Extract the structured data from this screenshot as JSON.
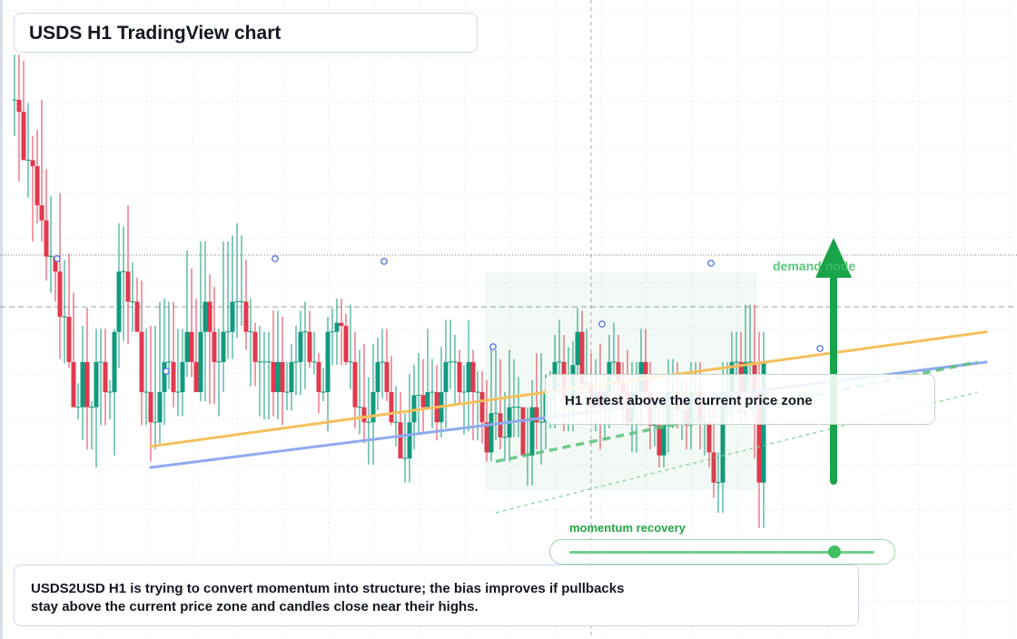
{
  "title": "USDS H1 TradingView chart",
  "annotations": {
    "retest": "H1 retest above the current price zone",
    "demand": "demand node",
    "momentum_label": "momentum recovery",
    "momentum_level": 0.87
  },
  "summary": "USDS2USD H1 is trying to convert momentum into structure; the bias improves if pullbacks stay above the current price zone and candles close near their highs.",
  "colors": {
    "up": "#129a7e",
    "down": "#e2394f",
    "trend_orange": "#f5bf5c",
    "trend_blue": "#8faaf0",
    "green_accent": "#19a34a"
  },
  "chart_data": {
    "type": "candlestick",
    "timeframe": "H1",
    "grid": true,
    "candles": [
      [
        100.0,
        100.0,
        97.6,
        103.0
      ],
      [
        100.0,
        99.2,
        94.6,
        103.0
      ],
      [
        99.2,
        96.0,
        96.0,
        102.6
      ],
      [
        96.0,
        96.0,
        93.5,
        99.8
      ],
      [
        96.0,
        95.6,
        90.6,
        97.6
      ],
      [
        95.6,
        93.0,
        91.8,
        98.0
      ],
      [
        93.0,
        92.0,
        90.6,
        100.0
      ],
      [
        92.0,
        89.6,
        88.0,
        95.4
      ],
      [
        89.6,
        89.6,
        87.2,
        93.6
      ],
      [
        89.6,
        88.6,
        86.6,
        89.6
      ],
      [
        88.6,
        85.6,
        82.8,
        93.8
      ],
      [
        85.6,
        85.6,
        82.5,
        89.4
      ],
      [
        85.6,
        82.6,
        82.2,
        89.8
      ],
      [
        82.6,
        79.6,
        79.6,
        87.2
      ],
      [
        79.6,
        79.6,
        78.8,
        81.2
      ],
      [
        79.6,
        82.6,
        77.4,
        85.0
      ],
      [
        82.6,
        79.6,
        76.8,
        86.2
      ],
      [
        79.6,
        79.6,
        76.8,
        80.0
      ],
      [
        79.6,
        82.6,
        75.6,
        84.8
      ],
      [
        82.6,
        82.6,
        78.4,
        84.8
      ],
      [
        82.6,
        80.6,
        78.4,
        84.8
      ],
      [
        80.6,
        80.6,
        78.8,
        81.4
      ],
      [
        80.6,
        84.6,
        76.4,
        84.8
      ],
      [
        84.6,
        88.6,
        82.2,
        91.8
      ],
      [
        88.6,
        88.6,
        84.0,
        91.6
      ],
      [
        88.6,
        86.6,
        83.8,
        93.0
      ],
      [
        86.6,
        86.6,
        84.6,
        89.2
      ],
      [
        86.6,
        84.6,
        84.6,
        88.2
      ],
      [
        84.6,
        80.6,
        78.4,
        88.0
      ],
      [
        80.6,
        80.6,
        78.4,
        84.8
      ],
      [
        80.6,
        78.6,
        76.0,
        85.0
      ],
      [
        78.6,
        78.6,
        76.8,
        85.0
      ],
      [
        78.6,
        80.6,
        77.2,
        86.6
      ],
      [
        80.6,
        82.6,
        78.4,
        86.8
      ],
      [
        82.6,
        82.6,
        80.8,
        86.6
      ],
      [
        82.6,
        80.6,
        79.6,
        86.6
      ],
      [
        80.6,
        80.6,
        79.0,
        84.8
      ],
      [
        80.6,
        82.6,
        79.0,
        84.8
      ],
      [
        82.6,
        84.6,
        81.6,
        90.0
      ],
      [
        84.6,
        82.6,
        81.6,
        88.8
      ],
      [
        82.6,
        80.6,
        80.6,
        86.8
      ],
      [
        80.6,
        84.6,
        80.0,
        90.6
      ],
      [
        84.6,
        86.6,
        80.0,
        90.6
      ],
      [
        86.6,
        84.6,
        79.8,
        88.4
      ],
      [
        84.6,
        82.6,
        79.8,
        87.6
      ],
      [
        82.6,
        82.6,
        79.0,
        84.8
      ],
      [
        82.6,
        84.6,
        80.6,
        90.6
      ],
      [
        84.6,
        84.6,
        82.8,
        90.6
      ],
      [
        84.6,
        86.6,
        82.8,
        91.0
      ],
      [
        86.6,
        86.6,
        84.2,
        91.8
      ],
      [
        86.6,
        86.6,
        85.0,
        91.0
      ],
      [
        86.6,
        84.6,
        83.4,
        89.4
      ],
      [
        84.6,
        84.6,
        81.0,
        86.8
      ],
      [
        84.6,
        82.6,
        81.0,
        85.2
      ],
      [
        82.6,
        82.6,
        79.0,
        85.0
      ],
      [
        82.6,
        82.6,
        78.8,
        84.6
      ],
      [
        82.6,
        82.6,
        78.8,
        84.6
      ],
      [
        82.6,
        80.6,
        79.0,
        86.0
      ],
      [
        80.6,
        82.6,
        78.8,
        86.0
      ],
      [
        82.6,
        80.6,
        78.4,
        85.6
      ],
      [
        80.6,
        80.6,
        79.4,
        82.6
      ],
      [
        80.6,
        82.6,
        79.4,
        83.8
      ],
      [
        82.6,
        82.6,
        80.4,
        85.0
      ],
      [
        82.6,
        84.6,
        80.4,
        86.0
      ],
      [
        84.6,
        84.6,
        80.8,
        86.6
      ],
      [
        84.6,
        82.6,
        82.2,
        86.0
      ],
      [
        82.6,
        82.6,
        81.8,
        84.6
      ],
      [
        82.6,
        80.6,
        79.2,
        83.2
      ],
      [
        80.6,
        80.6,
        80.0,
        82.2
      ],
      [
        80.6,
        84.6,
        78.0,
        85.6
      ],
      [
        84.6,
        84.6,
        82.4,
        86.2
      ],
      [
        84.6,
        85.2,
        82.4,
        86.8
      ],
      [
        85.2,
        85.0,
        82.4,
        86.8
      ],
      [
        85.0,
        82.6,
        82.4,
        85.8
      ],
      [
        82.6,
        82.6,
        80.8,
        86.4
      ],
      [
        82.6,
        79.6,
        78.2,
        84.6
      ],
      [
        79.6,
        79.6,
        77.8,
        83.4
      ],
      [
        79.6,
        78.6,
        77.2,
        83.8
      ],
      [
        78.6,
        78.6,
        75.8,
        81.6
      ],
      [
        78.6,
        80.6,
        75.8,
        83.8
      ],
      [
        80.6,
        82.6,
        79.4,
        84.2
      ],
      [
        82.6,
        82.6,
        80.2,
        84.8
      ],
      [
        82.6,
        80.6,
        80.0,
        84.8
      ],
      [
        80.6,
        78.6,
        78.4,
        83.0
      ],
      [
        78.6,
        78.6,
        77.0,
        81.0
      ],
      [
        78.6,
        76.2,
        76.2,
        80.6
      ],
      [
        76.2,
        76.2,
        74.6,
        79.2
      ],
      [
        76.2,
        78.6,
        74.6,
        81.8
      ],
      [
        78.6,
        80.4,
        76.8,
        82.4
      ],
      [
        80.4,
        80.4,
        77.8,
        83.2
      ],
      [
        80.4,
        79.6,
        77.8,
        82.8
      ],
      [
        79.6,
        80.6,
        79.6,
        84.8
      ],
      [
        80.6,
        80.6,
        78.2,
        82.8
      ],
      [
        80.6,
        78.6,
        77.4,
        82.4
      ],
      [
        78.6,
        80.6,
        77.6,
        83.6
      ],
      [
        80.6,
        82.6,
        78.2,
        85.4
      ],
      [
        82.6,
        82.6,
        80.8,
        85.4
      ],
      [
        82.6,
        82.6,
        79.8,
        84.4
      ],
      [
        82.6,
        80.6,
        79.8,
        83.4
      ],
      [
        80.6,
        80.6,
        77.8,
        82.4
      ],
      [
        80.6,
        82.6,
        78.0,
        85.4
      ],
      [
        82.6,
        80.6,
        77.4,
        83.4
      ],
      [
        80.6,
        80.6,
        77.4,
        82.0
      ],
      [
        80.6,
        78.6,
        77.2,
        82.0
      ],
      [
        78.6,
        76.6,
        76.0,
        81.4
      ],
      [
        76.6,
        79.2,
        76.0,
        83.6
      ],
      [
        79.2,
        79.2,
        77.4,
        83.4
      ],
      [
        79.2,
        77.6,
        76.8,
        82.8
      ],
      [
        77.6,
        77.6,
        76.0,
        80.6
      ],
      [
        77.6,
        79.6,
        76.0,
        83.4
      ],
      [
        79.6,
        79.6,
        77.6,
        82.8
      ],
      [
        79.6,
        79.6,
        77.6,
        81.6
      ],
      [
        79.6,
        76.4,
        76.4,
        79.6
      ],
      [
        76.4,
        76.4,
        74.4,
        79.6
      ],
      [
        76.4,
        79.6,
        74.4,
        81.4
      ],
      [
        79.6,
        78.6,
        76.8,
        83.2
      ],
      [
        78.6,
        78.6,
        75.8,
        83.2
      ],
      [
        78.6,
        80.6,
        76.8,
        81.8
      ],
      [
        80.6,
        80.6,
        78.2,
        82.0
      ],
      [
        80.6,
        82.6,
        78.2,
        84.4
      ],
      [
        82.6,
        82.6,
        80.4,
        85.4
      ],
      [
        82.6,
        80.2,
        78.0,
        84.4
      ],
      [
        80.2,
        80.2,
        78.0,
        83.6
      ],
      [
        80.2,
        82.4,
        78.0,
        84.0
      ],
      [
        82.4,
        84.6,
        80.2,
        86.2
      ],
      [
        84.6,
        81.2,
        80.4,
        86.0
      ],
      [
        81.2,
        81.2,
        78.8,
        84.8
      ],
      [
        81.2,
        79.6,
        78.4,
        83.2
      ],
      [
        79.6,
        80.6,
        78.0,
        82.8
      ],
      [
        80.6,
        79.6,
        76.8,
        83.8
      ],
      [
        79.6,
        80.6,
        77.4,
        81.8
      ],
      [
        80.6,
        82.6,
        78.2,
        84.4
      ],
      [
        82.6,
        82.6,
        80.6,
        85.2
      ],
      [
        82.6,
        81.2,
        79.4,
        84.4
      ],
      [
        81.2,
        80.6,
        78.6,
        82.6
      ],
      [
        80.6,
        78.6,
        78.4,
        83.4
      ],
      [
        78.6,
        80.6,
        76.6,
        82.6
      ],
      [
        80.6,
        80.6,
        76.6,
        82.6
      ],
      [
        80.6,
        82.6,
        78.4,
        84.8
      ],
      [
        82.6,
        80.6,
        79.6,
        84.8
      ],
      [
        80.6,
        78.4,
        76.8,
        82.6
      ],
      [
        78.4,
        78.4,
        77.0,
        80.0
      ],
      [
        78.4,
        76.4,
        75.6,
        80.0
      ],
      [
        76.4,
        78.4,
        75.6,
        80.6
      ],
      [
        78.4,
        80.6,
        76.6,
        82.8
      ],
      [
        80.6,
        80.6,
        78.2,
        82.8
      ],
      [
        80.6,
        79.4,
        78.2,
        82.6
      ],
      [
        79.4,
        79.4,
        77.4,
        81.4
      ],
      [
        79.4,
        78.4,
        76.8,
        81.4
      ],
      [
        78.4,
        80.6,
        76.8,
        82.6
      ],
      [
        80.6,
        80.6,
        78.6,
        82.6
      ],
      [
        80.6,
        78.6,
        76.8,
        82.6
      ],
      [
        78.6,
        78.6,
        76.4,
        80.6
      ],
      [
        78.6,
        76.6,
        75.6,
        80.6
      ],
      [
        76.6,
        74.6,
        73.6,
        80.6
      ],
      [
        74.6,
        74.6,
        72.6,
        76.6
      ],
      [
        74.6,
        80.6,
        72.6,
        82.6
      ],
      [
        80.6,
        80.6,
        78.6,
        82.6
      ],
      [
        80.6,
        82.6,
        78.6,
        84.6
      ],
      [
        82.6,
        82.6,
        80.6,
        84.6
      ],
      [
        82.6,
        80.6,
        78.6,
        84.6
      ],
      [
        80.6,
        82.6,
        78.6,
        86.4
      ],
      [
        82.6,
        82.6,
        80.6,
        86.4
      ],
      [
        82.6,
        80.6,
        76.2,
        86.4
      ],
      [
        80.6,
        74.6,
        71.6,
        84.6
      ],
      [
        74.6,
        82.6,
        71.6,
        84.6
      ]
    ],
    "overlays": {
      "trend_orange": [
        [
          30,
          77.0
        ],
        [
          214,
          84.6
        ]
      ],
      "trend_blue": [
        [
          30,
          75.6
        ],
        [
          214,
          82.6
        ]
      ],
      "green_dashed": [
        [
          106,
          76.0
        ],
        [
          212,
          82.6
        ]
      ],
      "green_dotted": [
        [
          106,
          72.6
        ],
        [
          212,
          80.6
        ]
      ]
    }
  }
}
